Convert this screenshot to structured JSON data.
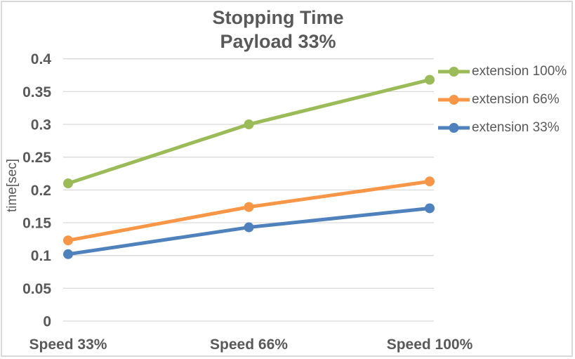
{
  "chart_data": {
    "type": "line",
    "title": "Stopping Time",
    "subtitle": "Payload 33%",
    "categories": [
      "Speed 33%",
      "Speed 66%",
      "Speed 100%"
    ],
    "series": [
      {
        "name": "extension 100%",
        "color": "#9BBB59",
        "values": [
          0.21,
          0.3,
          0.368
        ]
      },
      {
        "name": "extension 66%",
        "color": "#F79646",
        "values": [
          0.123,
          0.174,
          0.213
        ]
      },
      {
        "name": "extension 33%",
        "color": "#4F81BD",
        "values": [
          0.102,
          0.143,
          0.172
        ]
      }
    ],
    "xlabel": "",
    "ylabel": "time[sec]",
    "ylim": [
      0,
      0.4
    ],
    "ytick_step": 0.05,
    "yticks": [
      "0.4",
      "0.35",
      "0.3",
      "0.25",
      "0.2",
      "0.15",
      "0.1",
      "0.05",
      "0"
    ],
    "grid": true,
    "legend_position": "right",
    "marker": "circle"
  },
  "style": {
    "grid_color": "#D9D9D9",
    "text_color": "#595959",
    "border_color": "#D9D9D9",
    "background": "#FFFFFF"
  }
}
